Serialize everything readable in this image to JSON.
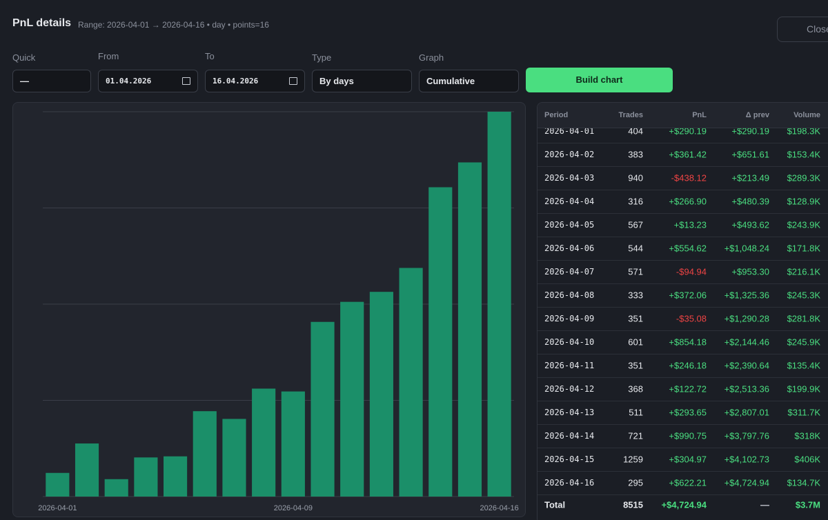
{
  "header": {
    "title": "PnL details",
    "subtitle": "Range: 2026-04-01 → 2026-04-16 • day • points=16",
    "close": "Close"
  },
  "form": {
    "fields": [
      {
        "label": "Quick",
        "value": "—"
      },
      {
        "label": "From",
        "value": "01.04.2026"
      },
      {
        "label": "To",
        "value": "16.04.2026"
      },
      {
        "label": "Type",
        "value": "By days"
      },
      {
        "label": "Graph",
        "value": "Cumulative"
      }
    ],
    "button": "Build chart"
  },
  "chart_data": {
    "type": "bar",
    "categories": [
      "2026-04-01",
      null,
      null,
      null,
      null,
      null,
      null,
      null,
      "2026-04-09",
      null,
      null,
      null,
      null,
      null,
      null,
      "2026-04-16"
    ],
    "values": [
      290.19,
      651.61,
      213.49,
      480.39,
      493.62,
      1048.24,
      953.3,
      1325.36,
      1290.28,
      2144.46,
      2390.64,
      2513.36,
      2807.01,
      3797.76,
      4102.73,
      4724.94
    ],
    "color": "#1b8f69",
    "ylim": [
      0,
      4724.94
    ],
    "yticks": [
      0,
      1181.2,
      2362.5,
      3543.7,
      4724.94
    ],
    "grid": true
  },
  "table": {
    "columns": [
      "Period",
      "Trades",
      "PnL",
      "Δ prev",
      "Volume"
    ],
    "rows": [
      [
        "2026-04-01",
        "404",
        "+$290.19",
        "+$290.19",
        "$198.3K"
      ],
      [
        "2026-04-02",
        "383",
        "+$361.42",
        "+$651.61",
        "$153.4K"
      ],
      [
        "2026-04-03",
        "940",
        "-$438.12",
        "+$213.49",
        "$289.3K"
      ],
      [
        "2026-04-04",
        "316",
        "+$266.90",
        "+$480.39",
        "$128.9K"
      ],
      [
        "2026-04-05",
        "567",
        "+$13.23",
        "+$493.62",
        "$243.9K"
      ],
      [
        "2026-04-06",
        "544",
        "+$554.62",
        "+$1,048.24",
        "$171.8K"
      ],
      [
        "2026-04-07",
        "571",
        "-$94.94",
        "+$953.30",
        "$216.1K"
      ],
      [
        "2026-04-08",
        "333",
        "+$372.06",
        "+$1,325.36",
        "$245.3K"
      ],
      [
        "2026-04-09",
        "351",
        "-$35.08",
        "+$1,290.28",
        "$281.8K"
      ],
      [
        "2026-04-10",
        "601",
        "+$854.18",
        "+$2,144.46",
        "$245.9K"
      ],
      [
        "2026-04-11",
        "351",
        "+$246.18",
        "+$2,390.64",
        "$135.4K"
      ],
      [
        "2026-04-12",
        "368",
        "+$122.72",
        "+$2,513.36",
        "$199.9K"
      ],
      [
        "2026-04-13",
        "511",
        "+$293.65",
        "+$2,807.01",
        "$311.7K"
      ],
      [
        "2026-04-14",
        "721",
        "+$990.75",
        "+$3,797.76",
        "$318K"
      ],
      [
        "2026-04-15",
        "1259",
        "+$304.97",
        "+$4,102.73",
        "$406K"
      ],
      [
        "2026-04-16",
        "295",
        "+$622.21",
        "+$4,724.94",
        "$134.7K"
      ]
    ],
    "total": [
      "Total",
      "8515",
      "+$4,724.94",
      "—",
      "$3.7M"
    ]
  }
}
